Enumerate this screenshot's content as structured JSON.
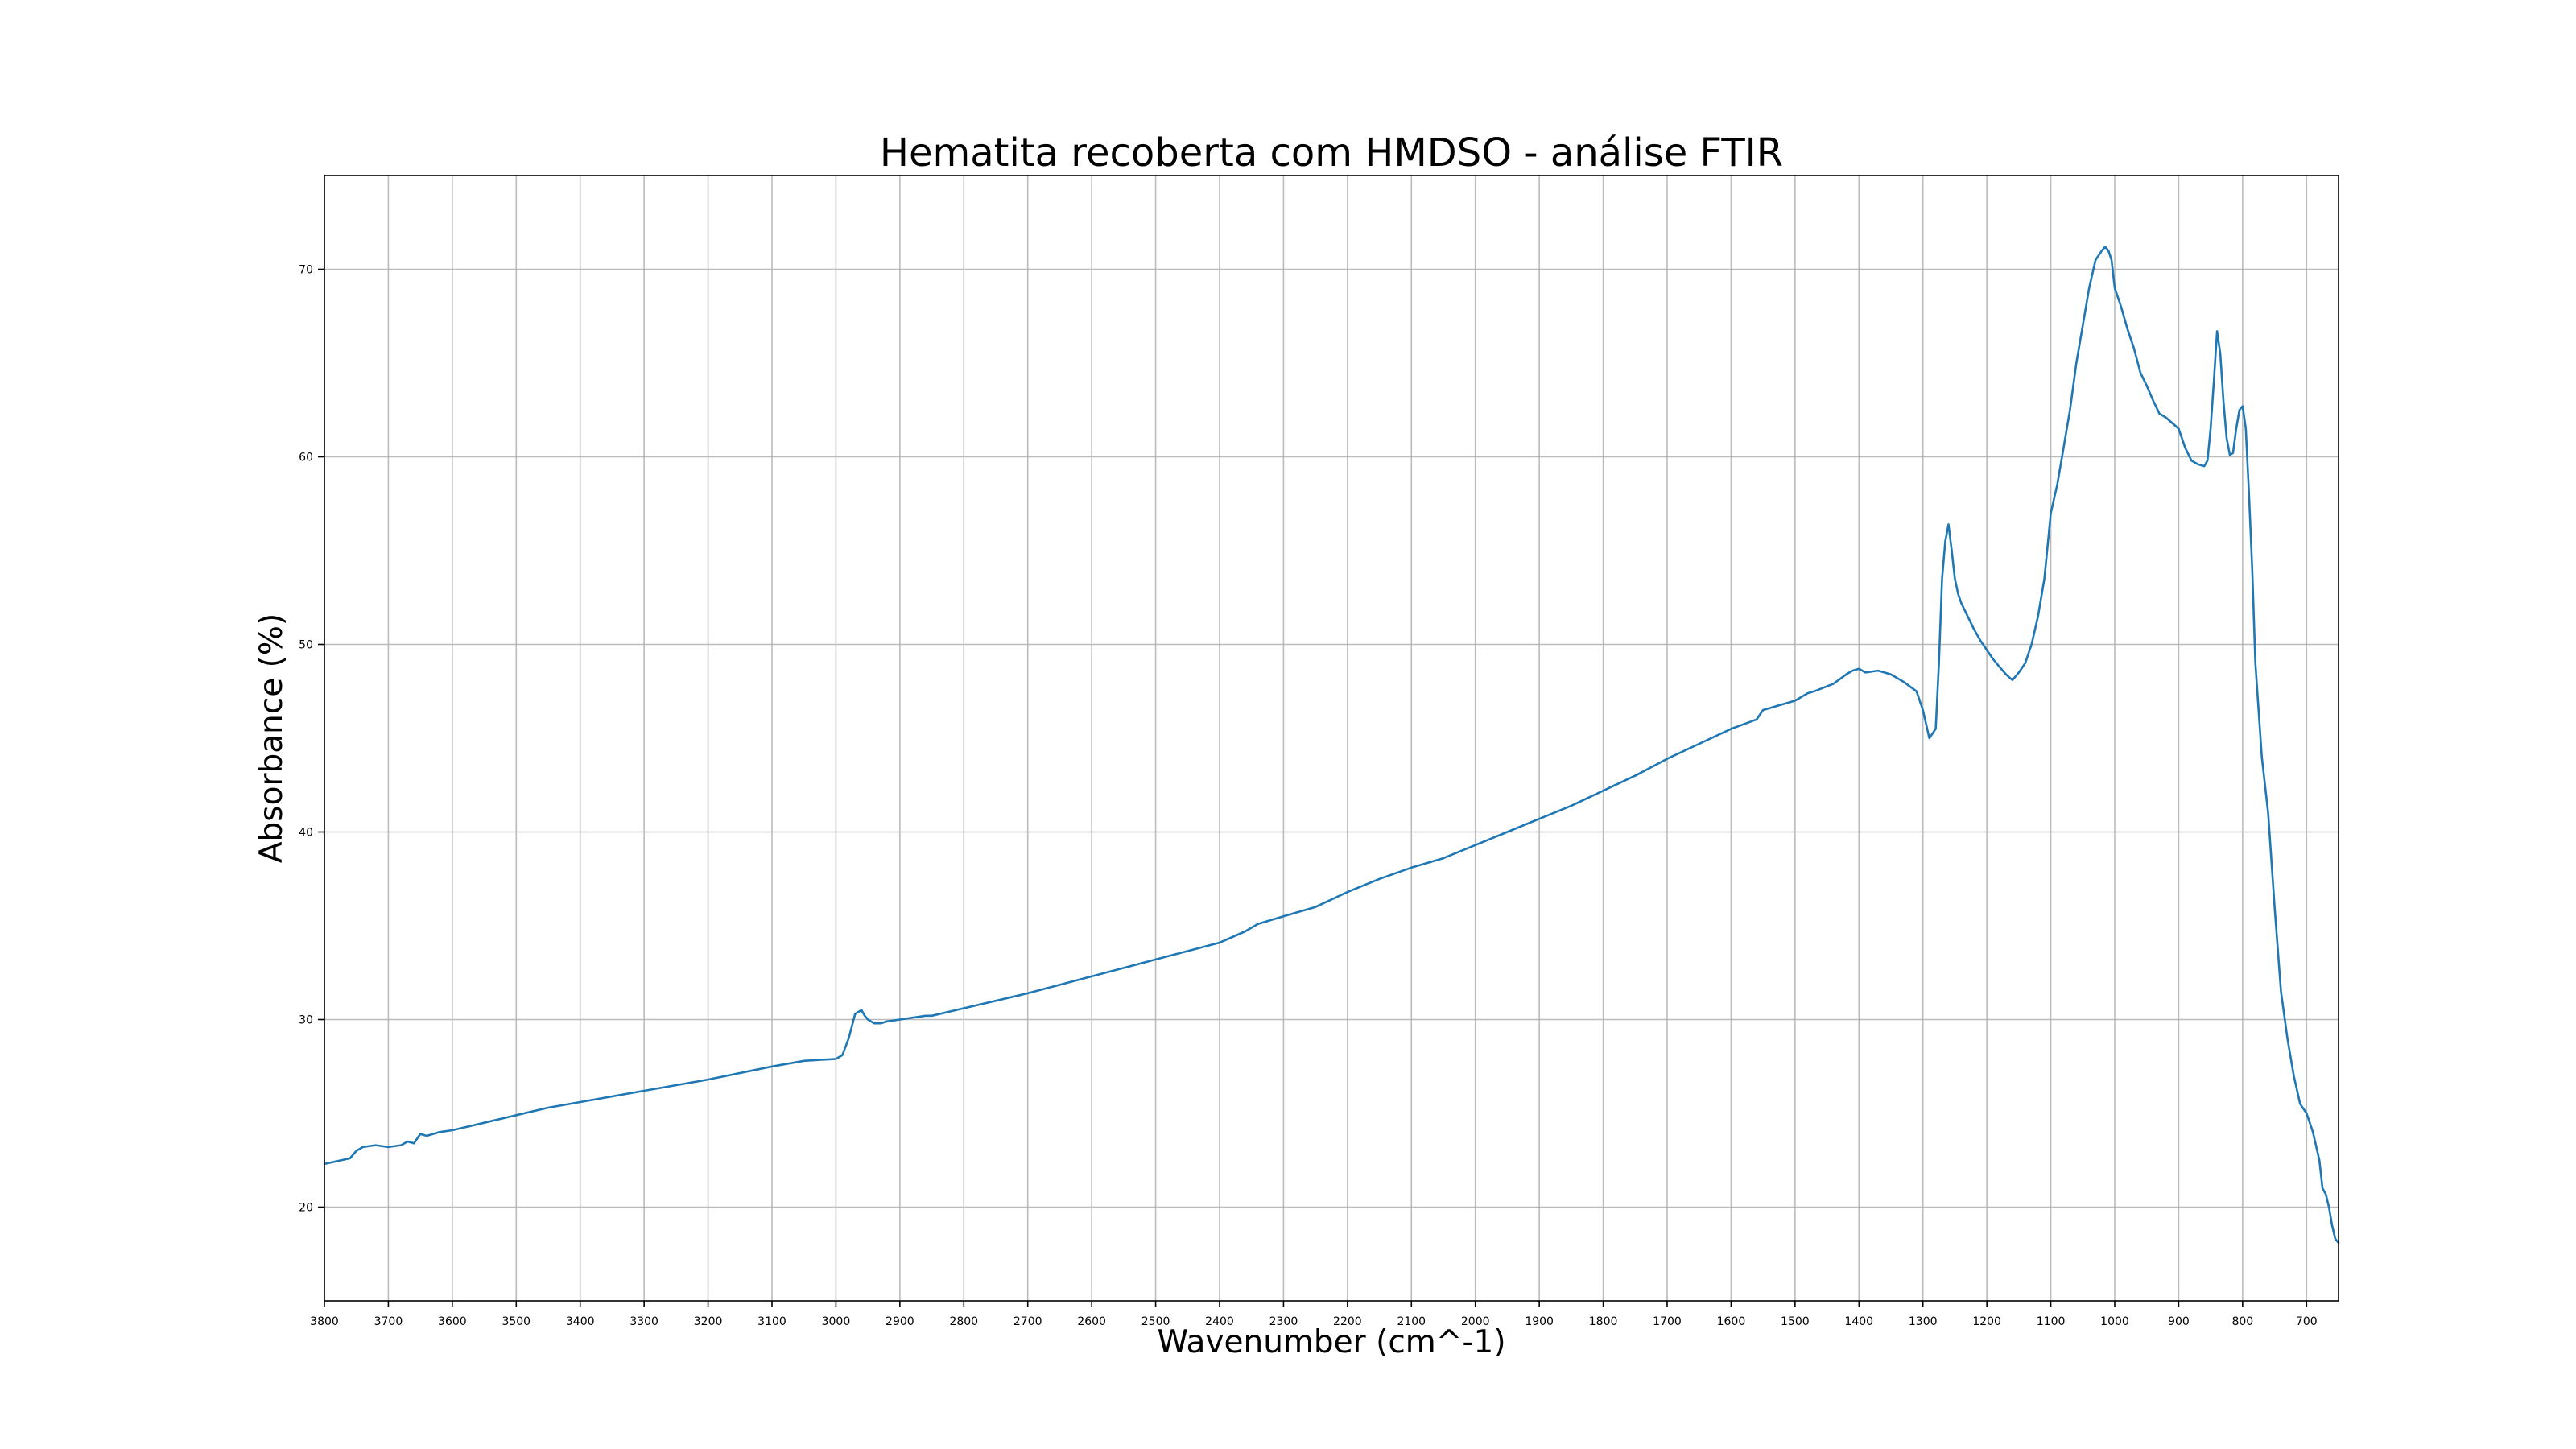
{
  "chart_data": {
    "type": "line",
    "title": "Hematita recoberta com HMDSO - análise FTIR",
    "xlabel": "Wavenumber (cm^-1)",
    "ylabel": "Absorbance (%)",
    "x_reversed": true,
    "xlim": [
      3800,
      650
    ],
    "ylim": [
      15,
      75
    ],
    "xticks": [
      3800,
      3700,
      3600,
      3500,
      3400,
      3300,
      3200,
      3100,
      3000,
      2900,
      2800,
      2700,
      2600,
      2500,
      2400,
      2300,
      2200,
      2100,
      2000,
      1900,
      1800,
      1700,
      1600,
      1500,
      1400,
      1300,
      1200,
      1100,
      1000,
      900,
      800,
      700
    ],
    "yticks": [
      20,
      30,
      40,
      50,
      60,
      70
    ],
    "grid": true,
    "legend": "none",
    "series": [
      {
        "color": "#1f77b4",
        "x": [
          3800,
          3760,
          3750,
          3740,
          3720,
          3700,
          3680,
          3670,
          3660,
          3650,
          3640,
          3620,
          3600,
          3550,
          3500,
          3450,
          3400,
          3300,
          3200,
          3100,
          3050,
          3000,
          2990,
          2980,
          2970,
          2960,
          2955,
          2950,
          2940,
          2930,
          2920,
          2900,
          2880,
          2860,
          2850,
          2800,
          2700,
          2600,
          2500,
          2400,
          2380,
          2360,
          2340,
          2300,
          2250,
          2200,
          2150,
          2100,
          2050,
          2000,
          1950,
          1900,
          1850,
          1800,
          1750,
          1700,
          1650,
          1600,
          1560,
          1550,
          1540,
          1530,
          1500,
          1480,
          1470,
          1440,
          1420,
          1410,
          1400,
          1390,
          1370,
          1350,
          1330,
          1310,
          1300,
          1290,
          1280,
          1275,
          1270,
          1265,
          1260,
          1255,
          1250,
          1245,
          1240,
          1230,
          1220,
          1210,
          1200,
          1190,
          1180,
          1170,
          1160,
          1150,
          1140,
          1130,
          1120,
          1110,
          1100,
          1090,
          1080,
          1070,
          1060,
          1050,
          1040,
          1030,
          1020,
          1015,
          1010,
          1005,
          1000,
          990,
          980,
          970,
          960,
          950,
          940,
          930,
          920,
          910,
          900,
          890,
          880,
          870,
          860,
          855,
          850,
          845,
          840,
          835,
          830,
          825,
          820,
          815,
          810,
          805,
          800,
          795,
          790,
          785,
          780,
          770,
          760,
          750,
          740,
          730,
          720,
          710,
          700,
          690,
          680,
          675,
          670,
          665,
          660,
          655,
          650
        ],
        "y": [
          22.3,
          22.6,
          23.0,
          23.2,
          23.3,
          23.2,
          23.3,
          23.5,
          23.4,
          23.9,
          23.8,
          24.0,
          24.1,
          24.5,
          24.9,
          25.3,
          25.6,
          26.2,
          26.8,
          27.5,
          27.8,
          27.9,
          28.1,
          29.0,
          30.3,
          30.5,
          30.2,
          30.0,
          29.8,
          29.8,
          29.9,
          30.0,
          30.1,
          30.2,
          30.2,
          30.6,
          31.4,
          32.3,
          33.2,
          34.1,
          34.4,
          34.7,
          35.1,
          35.5,
          36.0,
          36.8,
          37.5,
          38.1,
          38.6,
          39.3,
          40.0,
          40.7,
          41.4,
          42.2,
          43.0,
          43.9,
          44.7,
          45.5,
          46.0,
          46.5,
          46.6,
          46.7,
          47.0,
          47.4,
          47.5,
          47.9,
          48.4,
          48.6,
          48.7,
          48.5,
          48.6,
          48.4,
          48.0,
          47.5,
          46.5,
          45.0,
          45.5,
          49.0,
          53.5,
          55.5,
          56.4,
          55.0,
          53.5,
          52.7,
          52.2,
          51.5,
          50.8,
          50.2,
          49.7,
          49.2,
          48.8,
          48.4,
          48.1,
          48.5,
          49.0,
          50.0,
          51.5,
          53.5,
          57.0,
          58.5,
          60.5,
          62.5,
          65.0,
          67.0,
          69.0,
          70.5,
          71.0,
          71.2,
          71.0,
          70.5,
          69.0,
          68.0,
          66.8,
          65.8,
          64.5,
          63.8,
          63.0,
          62.3,
          62.1,
          61.8,
          61.5,
          60.5,
          59.8,
          59.6,
          59.5,
          59.8,
          61.5,
          64.0,
          66.7,
          65.5,
          63.0,
          61.0,
          60.1,
          60.2,
          61.5,
          62.5,
          62.7,
          61.5,
          58.0,
          54.0,
          49.0,
          44.0,
          41.0,
          36.0,
          31.5,
          29.0,
          27.0,
          25.5,
          25.0,
          24.0,
          22.5,
          21.0,
          20.7,
          20.0,
          19.0,
          18.3,
          18.1
        ]
      }
    ]
  }
}
